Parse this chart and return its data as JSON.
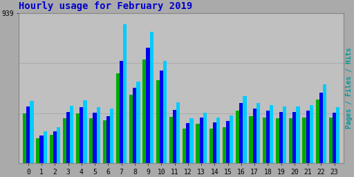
{
  "title": "Hourly usage for February 2019",
  "ylabel_right": "Pages / Files / Hits",
  "hours": [
    0,
    1,
    2,
    3,
    4,
    5,
    6,
    7,
    8,
    9,
    10,
    11,
    12,
    13,
    14,
    15,
    16,
    17,
    18,
    19,
    20,
    21,
    22,
    23
  ],
  "pages": [
    310,
    155,
    180,
    280,
    310,
    280,
    270,
    560,
    430,
    650,
    520,
    290,
    215,
    245,
    215,
    225,
    330,
    295,
    285,
    280,
    280,
    285,
    400,
    285
  ],
  "files": [
    355,
    175,
    200,
    320,
    350,
    315,
    295,
    640,
    470,
    720,
    580,
    335,
    250,
    285,
    255,
    265,
    375,
    340,
    330,
    320,
    320,
    330,
    440,
    315
  ],
  "hits": [
    390,
    200,
    225,
    360,
    395,
    350,
    340,
    870,
    510,
    820,
    640,
    380,
    280,
    315,
    285,
    300,
    420,
    375,
    365,
    355,
    355,
    365,
    495,
    350
  ],
  "pages_color": "#00aa00",
  "files_color": "#0000ee",
  "hits_color": "#00ccff",
  "background_color": "#aaaaaa",
  "plot_bg_color": "#c0c0c0",
  "title_color": "#0000cc",
  "ylabel_right_color": "#009999",
  "grid_color": "#aaaaaa",
  "border_color": "#888888",
  "ymax": 939,
  "title_fontsize": 10,
  "axis_fontsize": 7,
  "bar_width": 0.27
}
